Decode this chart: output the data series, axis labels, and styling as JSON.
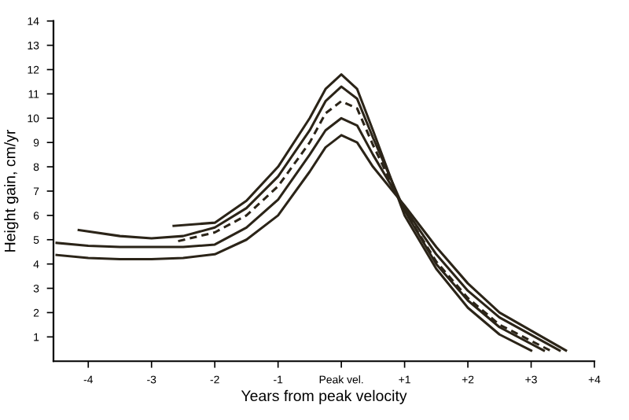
{
  "chart_data": {
    "type": "line",
    "xlabel": "Years from peak velocity",
    "ylabel": "Height gain, cm/yr",
    "xlim": [
      -4.55,
      4.0
    ],
    "ylim": [
      0,
      14
    ],
    "xticks": [
      -4,
      -3,
      -2,
      -1,
      {
        "value": 0,
        "label": "Peak vel."
      },
      {
        "value": 1,
        "label": "+1"
      },
      {
        "value": 2,
        "label": "+2"
      },
      {
        "value": 3,
        "label": "+3"
      },
      {
        "value": 4,
        "label": "+4"
      }
    ],
    "yticks": [
      1,
      2,
      3,
      4,
      5,
      6,
      7,
      8,
      9,
      10,
      11,
      12,
      13,
      14
    ],
    "grid": false,
    "legend": false,
    "marker": "none",
    "series": [
      {
        "color": "#2b2418",
        "line_style": "solid",
        "x": [
          -2.65,
          -2,
          -1.5,
          -1,
          -0.5,
          -0.25,
          0,
          0.25,
          0.5,
          1,
          1.5,
          2,
          2.5,
          3.0
        ],
        "values": [
          5.57,
          5.7,
          6.6,
          8.0,
          10.0,
          11.2,
          11.8,
          11.2,
          9.5,
          6.0,
          3.8,
          2.2,
          1.1,
          0.44
        ]
      },
      {
        "color": "#2b2418",
        "line_style": "solid",
        "x": [
          -4.15,
          -3.5,
          -3,
          -2.5,
          -2,
          -1.5,
          -1,
          -0.5,
          -0.25,
          0,
          0.25,
          0.5,
          1,
          1.5,
          2,
          2.5,
          3.2
        ],
        "values": [
          5.4,
          5.15,
          5.06,
          5.15,
          5.5,
          6.3,
          7.6,
          9.5,
          10.7,
          11.3,
          10.8,
          9.2,
          6.2,
          4.0,
          2.5,
          1.4,
          0.44
        ]
      },
      {
        "color": "#2b2418",
        "line_style": "dashed",
        "x": [
          -2.58,
          -2,
          -1.5,
          -1,
          -0.5,
          -0.25,
          0,
          0.25,
          0.5,
          1,
          1.5,
          2,
          2.5,
          3.3
        ],
        "values": [
          4.94,
          5.3,
          6.0,
          7.2,
          9.0,
          10.2,
          10.7,
          10.4,
          8.9,
          6.2,
          4.1,
          2.6,
          1.5,
          0.44
        ]
      },
      {
        "color": "#2b2418",
        "line_style": "solid",
        "x": [
          -4.5,
          -4,
          -3.5,
          -3,
          -2.5,
          -2,
          -1.5,
          -1,
          -0.5,
          -0.25,
          0,
          0.25,
          0.5,
          1,
          1.5,
          2,
          2.5,
          3.45
        ],
        "values": [
          4.87,
          4.75,
          4.7,
          4.7,
          4.7,
          4.8,
          5.5,
          6.65,
          8.5,
          9.5,
          10.0,
          9.7,
          8.5,
          6.3,
          4.4,
          2.9,
          1.8,
          0.44
        ]
      },
      {
        "color": "#2b2418",
        "line_style": "solid",
        "x": [
          -4.5,
          -4,
          -3.5,
          -3,
          -2.5,
          -2,
          -1.5,
          -1,
          -0.5,
          -0.25,
          0,
          0.25,
          0.5,
          1,
          1.5,
          2,
          2.5,
          3.55
        ],
        "values": [
          4.37,
          4.25,
          4.2,
          4.2,
          4.25,
          4.4,
          5.0,
          6.0,
          7.8,
          8.8,
          9.3,
          9.0,
          8.0,
          6.4,
          4.7,
          3.2,
          2.0,
          0.44
        ]
      }
    ]
  }
}
